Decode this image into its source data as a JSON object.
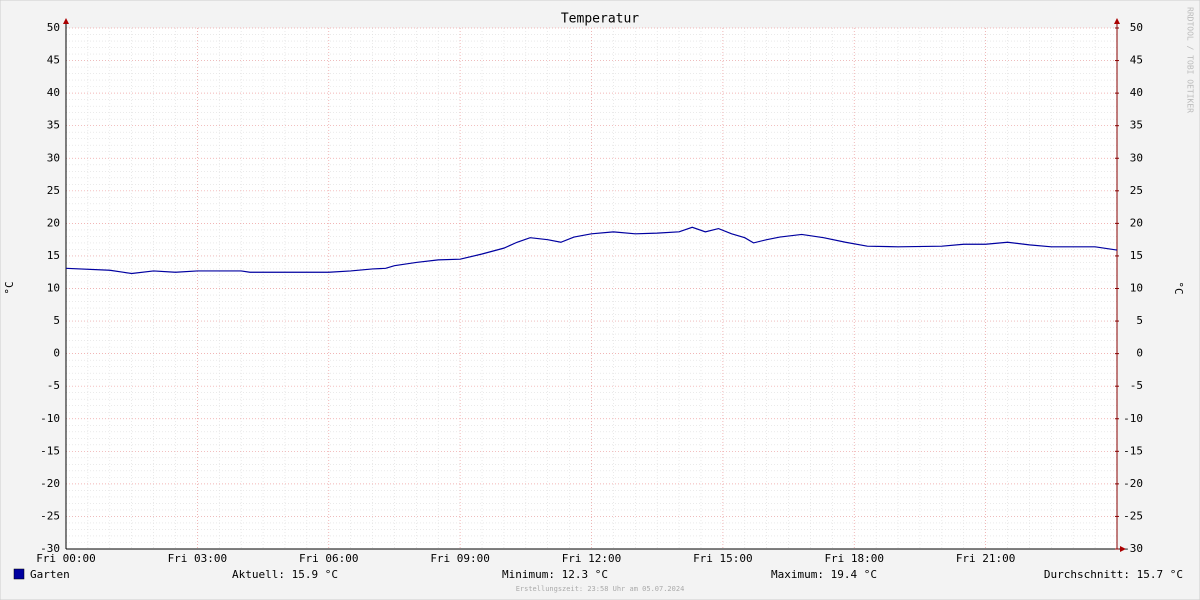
{
  "chart_data": {
    "type": "line",
    "title": "Temperatur",
    "ylabel": "°C",
    "y2label": "°C",
    "x": [
      0,
      1,
      1.3,
      1.5,
      2,
      2.5,
      3,
      4,
      4.2,
      5,
      6,
      6.5,
      7,
      7.3,
      7.5,
      8,
      8.5,
      9,
      9.5,
      10,
      10.3,
      10.6,
      11,
      11.3,
      11.6,
      12,
      12.5,
      13,
      13.5,
      14,
      14.3,
      14.6,
      14.9,
      15.2,
      15.5,
      15.7,
      16,
      16.3,
      16.8,
      17.3,
      17.8,
      18.3,
      19,
      20,
      20.5,
      21,
      21.5,
      22,
      22.5,
      23.5,
      24
    ],
    "series": [
      {
        "name": "Garten",
        "color": "#0000a0",
        "values": [
          13.1,
          12.8,
          12.5,
          12.3,
          12.7,
          12.5,
          12.7,
          12.7,
          12.5,
          12.5,
          12.5,
          12.7,
          13.0,
          13.1,
          13.5,
          14.0,
          14.4,
          14.5,
          15.3,
          16.2,
          17.1,
          17.8,
          17.5,
          17.1,
          17.9,
          18.4,
          18.7,
          18.4,
          18.5,
          18.7,
          19.4,
          18.7,
          19.2,
          18.4,
          17.8,
          17.0,
          17.5,
          17.9,
          18.3,
          17.8,
          17.1,
          16.5,
          16.4,
          16.5,
          16.8,
          16.8,
          17.1,
          16.7,
          16.4,
          16.4,
          15.9
        ]
      }
    ],
    "xlim": [
      0,
      24
    ],
    "xticks": [
      {
        "value": 0,
        "label": "Fri 00:00"
      },
      {
        "value": 3,
        "label": "Fri 03:00"
      },
      {
        "value": 6,
        "label": "Fri 06:00"
      },
      {
        "value": 9,
        "label": "Fri 09:00"
      },
      {
        "value": 12,
        "label": "Fri 12:00"
      },
      {
        "value": 15,
        "label": "Fri 15:00"
      },
      {
        "value": 18,
        "label": "Fri 18:00"
      },
      {
        "value": 21,
        "label": "Fri 21:00"
      }
    ],
    "ylim": [
      -30,
      50
    ],
    "yticks": [
      -30,
      -25,
      -20,
      -15,
      -10,
      -5,
      0,
      5,
      10,
      15,
      20,
      25,
      30,
      35,
      40,
      45,
      50
    ],
    "y2lim": [
      -30,
      50
    ],
    "y2ticks": [
      -30,
      -25,
      -20,
      -15,
      -10,
      -5,
      0,
      5,
      10,
      15,
      20,
      25,
      30,
      35,
      40,
      45,
      50
    ],
    "grid": true,
    "stats": [
      "Aktuell: 15.9 °C",
      "Minimum: 12.3 °C",
      "Maximum: 19.4 °C",
      "Durchschnitt: 15.7 °C"
    ],
    "footer": "Erstellungszeit: 23:58 Uhr am 05.07.2024",
    "watermark": "RRDTOOL / TOBI OETIKER"
  }
}
